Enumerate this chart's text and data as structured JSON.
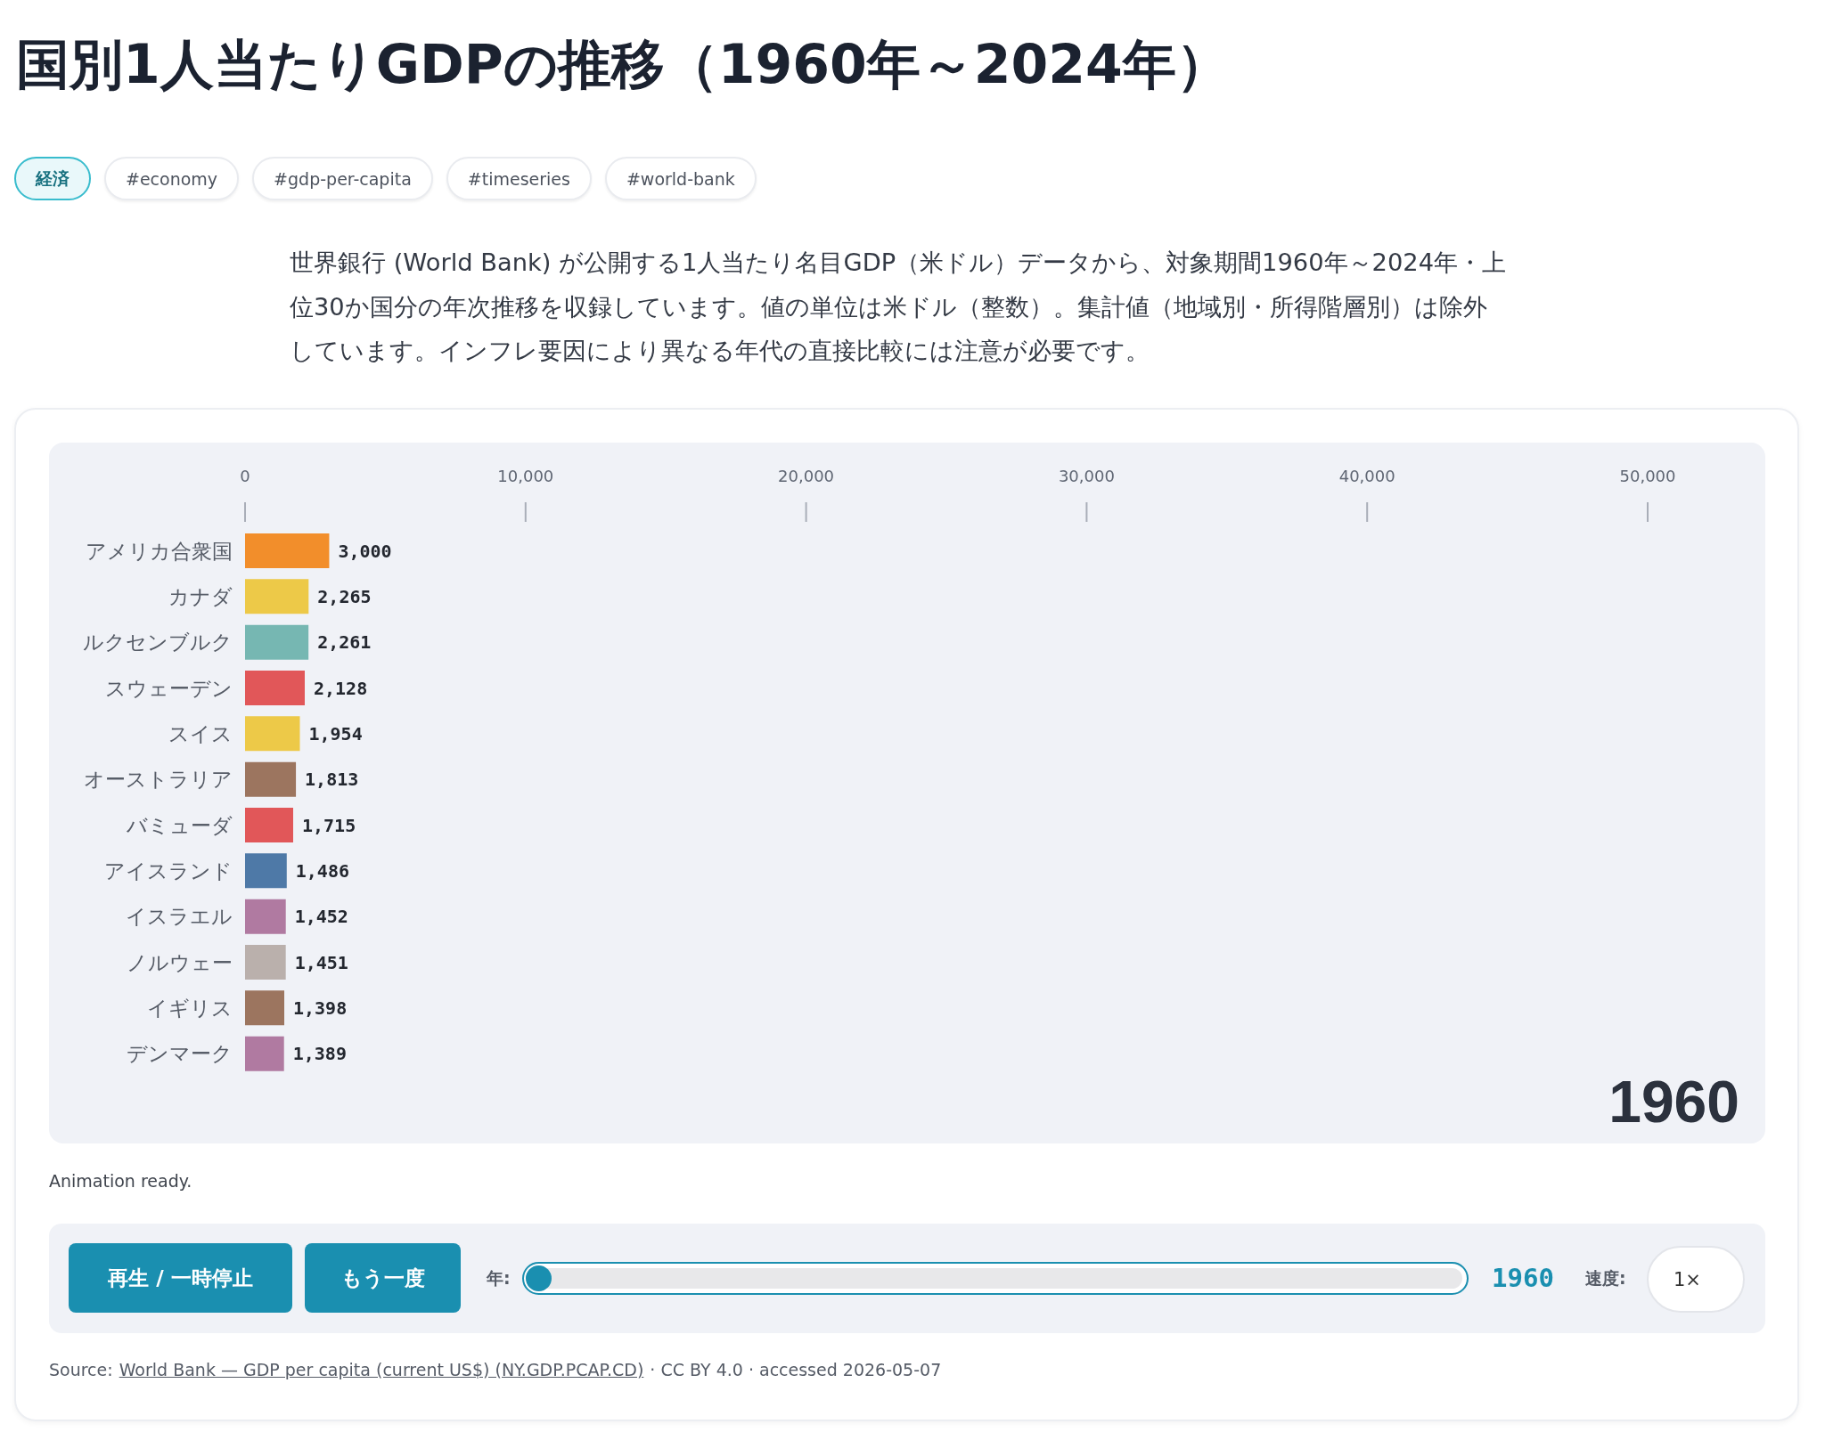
{
  "chart_data": {
    "type": "bar",
    "orientation": "horizontal",
    "title": "国別1人当たりGDPの推移（1960年～2024年）",
    "subtitle": "世界銀行 (World Bank) が公開する1人当たり名目GDP（米ドル）データから、対象期間1960年～2024年・上位30か国分の年次推移を収録しています。値の単位は米ドル（整数）。集計値（地域別・所得階層別）は除外しています。インフレ要因により異なる年代の直接比較には注意が必要です。",
    "categories": [
      "アメリカ合衆国",
      "カナダ",
      "ルクセンブルク",
      "スウェーデン",
      "スイス",
      "オーストラリア",
      "バミューダ",
      "アイスランド",
      "イスラエル",
      "ノルウェー",
      "イギリス",
      "デンマーク"
    ],
    "values": [
      3000,
      2265,
      2261,
      2128,
      1954,
      1813,
      1715,
      1486,
      1452,
      1451,
      1398,
      1389
    ],
    "value_labels": [
      "3,000",
      "2,265",
      "2,261",
      "2,128",
      "1,954",
      "1,813",
      "1,715",
      "1,486",
      "1,452",
      "1,451",
      "1,398",
      "1,389"
    ],
    "colors": [
      "#f28e2b",
      "#edc948",
      "#76b7b2",
      "#e15759",
      "#edc948",
      "#9c755f",
      "#e15759",
      "#4e79a7",
      "#b07aa1",
      "#bab0ac",
      "#9c755f",
      "#b07aa1"
    ],
    "xlim": [
      0,
      50000
    ],
    "xticks": [
      0,
      {
        "value": 10000,
        "label": "10,000"
      },
      {
        "value": 20000,
        "label": "20,000"
      },
      {
        "value": 30000,
        "label": "30,000"
      },
      {
        "value": 40000,
        "label": "40,000"
      },
      {
        "value": 50000,
        "label": "50,000"
      }
    ],
    "annotations": [
      "経済",
      "#economy",
      "#gdp-per-capita",
      "#timeseries",
      "#world-bank",
      "1960",
      "Animation ready.",
      "再生 / 一時停止",
      "もう一度",
      "年:",
      "1960",
      "速度:",
      "1×",
      "Source:",
      "World Bank — GDP per capita (current US$) (NY.GDP.PCAP.CD)",
      "· CC BY 4.0 · accessed 2026-05-07"
    ]
  }
}
